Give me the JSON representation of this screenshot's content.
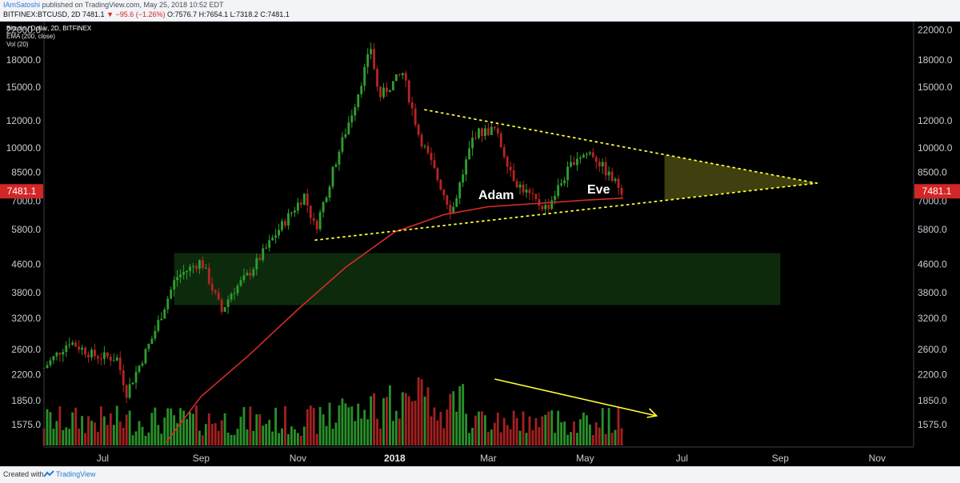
{
  "header": {
    "author": "IAmSatoshi",
    "published": "published on TradingView.com, May 25, 2018 10:52 EDT",
    "symbol": "BITFINEX:BTCUSD, 2D",
    "last": "7481.1",
    "change": "▼ −95.6 (−1.26%)",
    "o_label": "O:",
    "o": "7576.7",
    "h_label": "H:",
    "h": "7654.1",
    "l_label": "L:",
    "l": "7318.2",
    "c_label": "C:",
    "c": "7481.1"
  },
  "legend": {
    "title": "Bitcoin / Dollar, 2D, BITFINEX",
    "ema": "EMA (200, close)",
    "vol": "Vol (20)"
  },
  "footer": {
    "created": "Created with",
    "brand": "TradingView"
  },
  "colors": {
    "background": "#000000",
    "up": "#2e9e2e",
    "down": "#b52424",
    "ema": "#d62a2a",
    "trendline": "#ffff33",
    "volume_arrow": "#ffff33",
    "support_zone": "#0d2a0d",
    "apex_zone": "#4a4a12",
    "price_badge": "#d32626"
  },
  "chart_data": {
    "type": "candlestick",
    "title": "Bitcoin / Dollar, 2D, BITFINEX",
    "y_scale": "log",
    "ylim": [
      1400,
      24000
    ],
    "y_ticks": [
      "22000.0",
      "18000.0",
      "15000.0",
      "12000.0",
      "10000.0",
      "8500.0",
      "7000.0",
      "5800.0",
      "4600.0",
      "3800.0",
      "3200.0",
      "2600.0",
      "2200.0",
      "1850.0",
      "1575.0"
    ],
    "x_ticks": [
      "Jul",
      "Sep",
      "Nov",
      "2018",
      "Mar",
      "May",
      "Jul",
      "Sep",
      "Nov"
    ],
    "x_tick_dates": [
      "2017-07-01",
      "2017-09-01",
      "2017-11-01",
      "2018-01-01",
      "2018-03-01",
      "2018-05-01",
      "2018-07-01",
      "2018-09-01",
      "2018-11-01"
    ],
    "x_range": [
      "2017-05-25",
      "2018-11-24"
    ],
    "last_price": "7481.1",
    "price_path": [
      [
        "2017-05-25",
        2300
      ],
      [
        "2017-06-10",
        2750
      ],
      [
        "2017-06-25",
        2500
      ],
      [
        "2017-07-10",
        2450
      ],
      [
        "2017-07-16",
        1950
      ],
      [
        "2017-08-01",
        2800
      ],
      [
        "2017-08-16",
        4200
      ],
      [
        "2017-09-01",
        4700
      ],
      [
        "2017-09-14",
        3350
      ],
      [
        "2017-09-20",
        3800
      ],
      [
        "2017-10-01",
        4300
      ],
      [
        "2017-10-20",
        5800
      ],
      [
        "2017-11-05",
        7300
      ],
      [
        "2017-11-12",
        5800
      ],
      [
        "2017-11-26",
        9500
      ],
      [
        "2017-12-07",
        13500
      ],
      [
        "2017-12-17",
        19500
      ],
      [
        "2017-12-22",
        14000
      ],
      [
        "2018-01-06",
        16500
      ],
      [
        "2018-01-16",
        11000
      ],
      [
        "2018-02-06",
        6500
      ],
      [
        "2018-02-20",
        11000
      ],
      [
        "2018-03-05",
        11300
      ],
      [
        "2018-03-18",
        8000
      ],
      [
        "2018-04-01",
        6900
      ],
      [
        "2018-04-07",
        6700
      ],
      [
        "2018-04-25",
        9400
      ],
      [
        "2018-05-05",
        9700
      ],
      [
        "2018-05-17",
        8200
      ],
      [
        "2018-05-25",
        7481
      ]
    ],
    "ema_200": [
      [
        "2017-08-10",
        1400
      ],
      [
        "2017-09-01",
        1900
      ],
      [
        "2017-10-01",
        2500
      ],
      [
        "2017-11-01",
        3400
      ],
      [
        "2017-12-01",
        4500
      ],
      [
        "2018-01-01",
        5700
      ],
      [
        "2018-02-01",
        6400
      ],
      [
        "2018-03-01",
        6750
      ],
      [
        "2018-04-01",
        6900
      ],
      [
        "2018-05-01",
        7050
      ],
      [
        "2018-05-25",
        7150
      ]
    ],
    "volume_bars": 104,
    "annotations": {
      "labels": [
        "Adam",
        "Eve"
      ],
      "triangle_upper": [
        [
          "2018-01-20",
          12900
        ],
        [
          "2018-09-24",
          7900
        ]
      ],
      "triangle_lower": [
        [
          "2017-11-12",
          5400
        ],
        [
          "2018-09-24",
          7900
        ]
      ],
      "support_zone": [
        3500,
        4950
      ],
      "apex_zone": [
        [
          "2018-06-20",
          9300
        ],
        [
          "2018-06-20",
          7400
        ]
      ],
      "volume_trend": "decreasing"
    }
  }
}
